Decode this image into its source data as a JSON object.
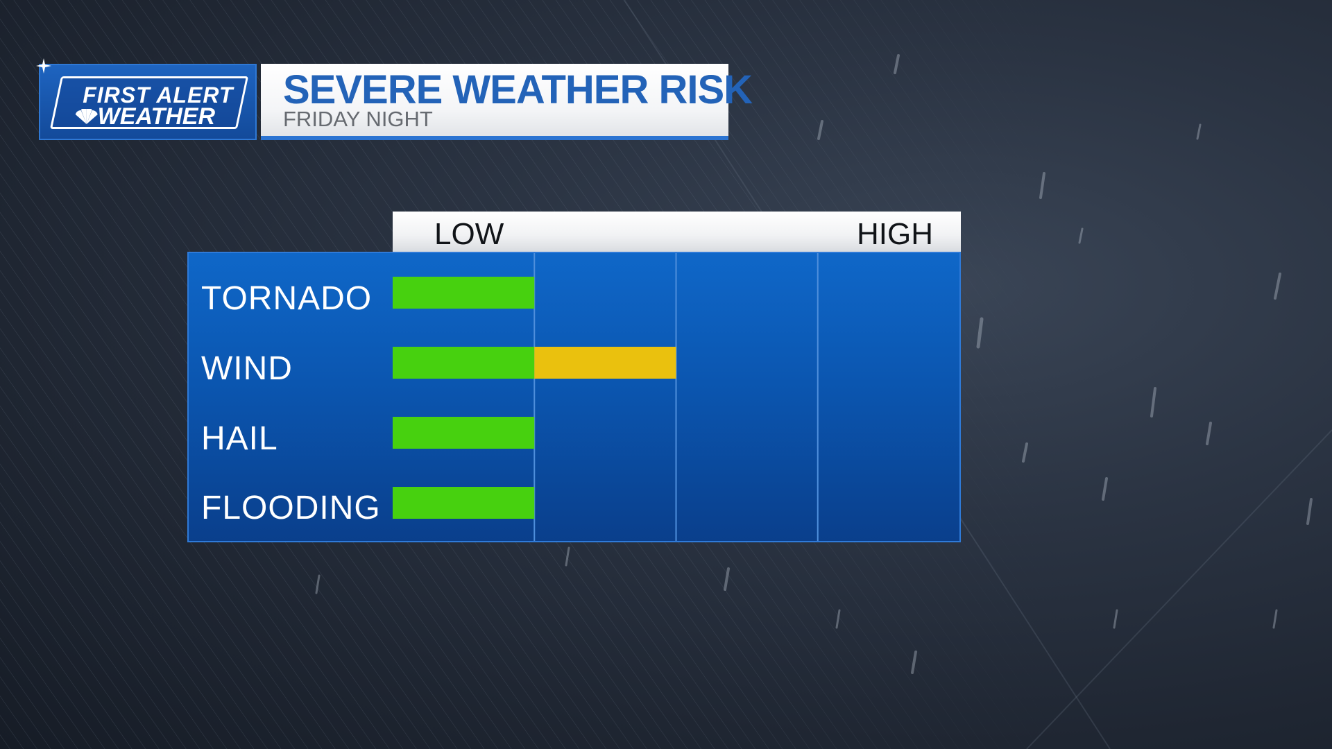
{
  "logo": {
    "line1": "FIRST ALERT",
    "line2": "WEATHER"
  },
  "header": {
    "title": "SEVERE WEATHER RISK",
    "subtitle": "FRIDAY NIGHT"
  },
  "colors": {
    "panel_blue": "#0b56b0",
    "title_blue": "#2363b8",
    "low_green": "#47d10f",
    "moderate_yellow": "#eac10e"
  },
  "chart_data": {
    "type": "bar",
    "orientation": "horizontal",
    "title": "SEVERE WEATHER RISK",
    "subtitle": "FRIDAY NIGHT",
    "scale_labels": [
      "LOW",
      "HIGH"
    ],
    "levels": 4,
    "xlim": [
      0,
      4
    ],
    "grid": true,
    "categories": [
      "TORNADO",
      "WIND",
      "HAIL",
      "FLOODING"
    ],
    "values": [
      1,
      2,
      1,
      1
    ],
    "level_colors": [
      "#47d10f",
      "#eac10e",
      "#f08c1a",
      "#e02020"
    ]
  }
}
